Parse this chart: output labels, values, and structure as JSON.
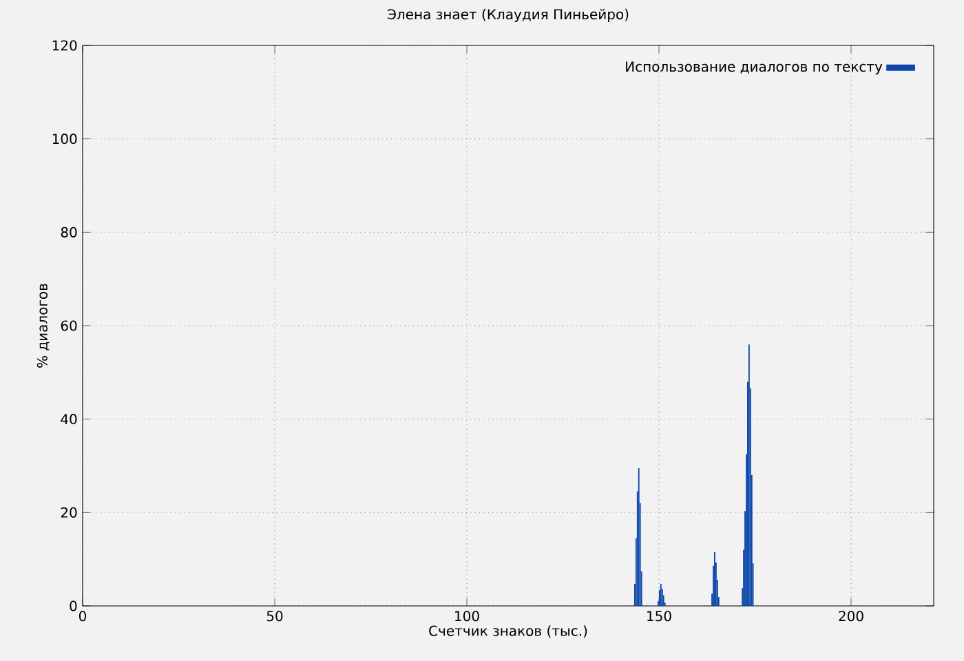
{
  "chart_data": {
    "type": "bar",
    "title": "Элена знает (Клаудия Пиньейро)",
    "xlabel": "Счетчик знаков (тыс.)",
    "ylabel": "% диалогов",
    "series": [
      {
        "name": "Использование диалогов по тексту",
        "color": "#0b46a8",
        "x": [
          143.7,
          144.05,
          144.4,
          144.75,
          145.1,
          145.45,
          149.8,
          150.15,
          150.5,
          150.85,
          151.2,
          151.55,
          163.8,
          164.15,
          164.5,
          164.85,
          165.2,
          165.55,
          171.7,
          172.05,
          172.4,
          172.75,
          173.1,
          173.45,
          173.8,
          174.15,
          174.5
        ],
        "values": [
          4.7,
          14.5,
          24.5,
          29.5,
          22,
          7.4,
          1,
          3.4,
          4.7,
          3.7,
          2.3,
          0.7,
          2.6,
          8.6,
          11.5,
          9.3,
          5.6,
          1.9,
          3.8,
          12,
          20.3,
          32.5,
          48,
          56,
          46.6,
          28,
          9.1
        ]
      }
    ],
    "xlim": [
      0,
      221.5
    ],
    "ylim": [
      0,
      120
    ],
    "xticks": [
      0,
      50,
      100,
      150,
      200
    ],
    "yticks": [
      0,
      20,
      40,
      60,
      80,
      100,
      120
    ],
    "grid": true,
    "legend": "top right"
  }
}
